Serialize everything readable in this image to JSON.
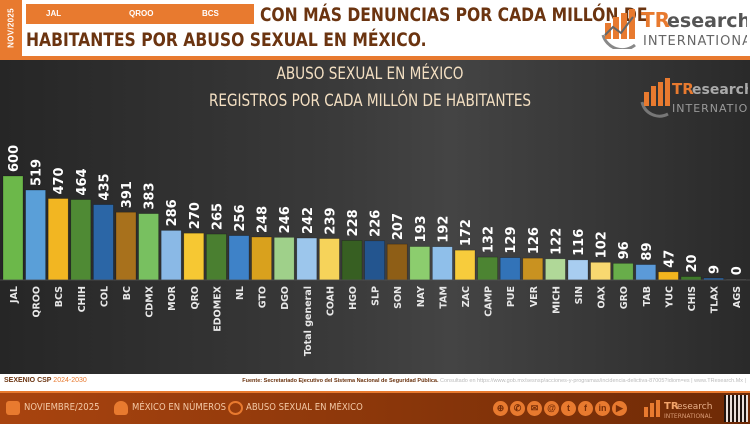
{
  "header": {
    "date_tag": "NOV/2025",
    "top_states": [
      "JAL",
      "QROO",
      "BCS"
    ],
    "headline_line1": "CON MÁS DENUNCIAS POR CADA MILLÓN DE",
    "headline_line2": "HABITANTES POR ABUSO SEXUAL EN MÉXICO.",
    "logo_brand_tr": "TR",
    "logo_brand_rest": "esearch",
    "logo_sub": "INTERNATIONAL"
  },
  "colors": {
    "accent_orange": "#e87a2f",
    "brown_text": "#6b3410",
    "title_text": "#f3dfc2"
  },
  "chart_data": {
    "type": "bar",
    "title": "ABUSO SEXUAL EN MÉXICO",
    "subtitle": "REGISTROS POR CADA MILLÓN DE HABITANTES",
    "xlabel": "",
    "ylabel": "",
    "ylim": [
      0,
      600
    ],
    "grid": false,
    "legend": "none",
    "categories": [
      "JAL",
      "QROO",
      "BCS",
      "CHIH",
      "COL",
      "BC",
      "CDMX",
      "MOR",
      "QRO",
      "EDOMEX",
      "NL",
      "GTO",
      "DGO",
      "Total general",
      "COAH",
      "HGO",
      "SLP",
      "SON",
      "NAY",
      "TAM",
      "ZAC",
      "CAMP",
      "PUE",
      "VER",
      "MICH",
      "SIN",
      "OAX",
      "GRO",
      "TAB",
      "YUC",
      "CHIS",
      "TLAX",
      "AGS"
    ],
    "values": [
      600,
      519,
      470,
      464,
      435,
      391,
      383,
      286,
      270,
      265,
      256,
      248,
      246,
      242,
      239,
      228,
      226,
      207,
      193,
      192,
      172,
      132,
      129,
      126,
      122,
      116,
      102,
      96,
      89,
      47,
      20,
      9,
      0
    ],
    "bar_colors": [
      "#6cb84a",
      "#5a9fd8",
      "#f2b622",
      "#4f8a34",
      "#2b66a6",
      "#a8711c",
      "#78c060",
      "#8ab9e6",
      "#f6c833",
      "#4a7f30",
      "#3e82c8",
      "#d9a11d",
      "#9fd08a",
      "#9cc6ec",
      "#f6d35a",
      "#375f22",
      "#23558f",
      "#8e5e16",
      "#8ccd6e",
      "#8fbfea",
      "#f7cc3c",
      "#4c8432",
      "#3273b8",
      "#c99220",
      "#b0d898",
      "#a8cdf0",
      "#f8d870",
      "#68ad4a",
      "#5b9ad8",
      "#f3b51e",
      "#3f7a2a",
      "#2a5f99",
      "#6a6a6a"
    ]
  },
  "footer_strip": {
    "left_label": "SEXENIO CSP",
    "left_period": "2024-2030",
    "source": "Fuente: Secretariado Ejecutivo del Sistema Nacional de Seguridad Pública.",
    "consulted": "Consultado en https://www.gob.mx/sesnsp/acciones-y-programas/incidencia-delictiva-87005?idiom=es | www.TResearch.Mx |"
  },
  "footer": {
    "items": [
      {
        "icon": "calendar-icon",
        "label": "NOVIEMBRE/2025"
      },
      {
        "icon": "people-icon",
        "label": "MÉXICO EN NÚMEROS"
      },
      {
        "icon": "eye-icon",
        "label": "ABUSO SEXUAL EN MÉXICO"
      }
    ],
    "social": [
      {
        "icon": "globe-icon",
        "glyph": "⊕"
      },
      {
        "icon": "whatsapp-icon",
        "glyph": "✆"
      },
      {
        "icon": "email-icon",
        "glyph": "✉"
      },
      {
        "icon": "threads-icon",
        "glyph": "@"
      },
      {
        "icon": "twitter-icon",
        "glyph": "t"
      },
      {
        "icon": "facebook-icon",
        "glyph": "f"
      },
      {
        "icon": "linkedin-icon",
        "glyph": "in"
      },
      {
        "icon": "youtube-icon",
        "glyph": "▶"
      }
    ]
  }
}
